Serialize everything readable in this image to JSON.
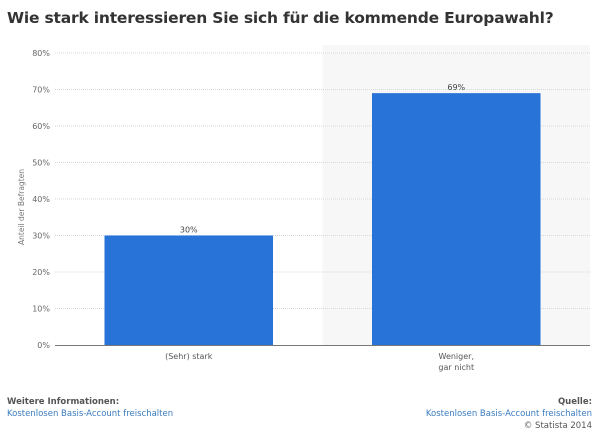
{
  "title": "Wie stark interessieren Sie sich für die kommende Europawahl?",
  "chart_data": {
    "type": "bar",
    "title": "Wie stark interessieren Sie sich für die kommende Europawahl?",
    "categories": [
      "(Sehr) stark",
      "Weniger,\ngar nicht"
    ],
    "values": [
      30,
      69
    ],
    "data_labels": [
      "30%",
      "69%"
    ],
    "xlabel": "",
    "ylabel": "Anteil der Befragten",
    "ylim": [
      0,
      80
    ],
    "yticks": [
      0,
      10,
      20,
      30,
      40,
      50,
      60,
      70,
      80
    ],
    "ytick_labels": [
      "0%",
      "10%",
      "20%",
      "30%",
      "40%",
      "50%",
      "60%",
      "70%",
      "80%"
    ],
    "grid": true,
    "legend": "none",
    "bar_color": "#2873d8",
    "highlight_category_index": 1,
    "highlight_color": "#f7f7f7"
  },
  "footer": {
    "left_heading": "Weitere Informationen:",
    "left_link": "Kostenlosen Basis-Account freischalten",
    "right_heading": "Quelle:",
    "right_link": "Kostenlosen Basis-Account freischalten",
    "copyright": "© Statista 2014"
  }
}
